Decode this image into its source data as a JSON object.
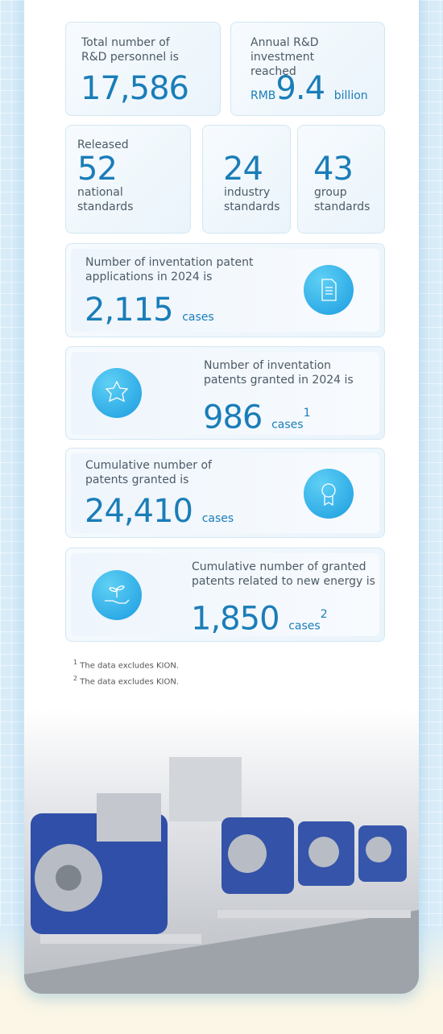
{
  "personnel": {
    "label": "Total number of R&D personnel is",
    "value": "17,586"
  },
  "investment": {
    "label": "Annual R&D investment reached",
    "prefix": "RMB",
    "value": "9.4",
    "unit": "billion"
  },
  "standards": {
    "label": "Released",
    "items": [
      {
        "value": "52",
        "label": "national standards"
      },
      {
        "value": "24",
        "label": "industry standards"
      },
      {
        "value": "43",
        "label": "group standards"
      }
    ]
  },
  "patents": [
    {
      "label": "Number of inventation patent applications in 2024 is",
      "value": "2,115",
      "unit": "cases"
    },
    {
      "label": "Number of inventation patents granted in 2024 is",
      "value": "986",
      "unit": "cases",
      "note": "1"
    },
    {
      "label": "Cumulative number of patents granted is",
      "value": "24,410",
      "unit": "cases"
    },
    {
      "label": "Cumulative number of granted patents related to new energy is",
      "value": "1,850",
      "unit": "cases",
      "note": "2"
    }
  ],
  "footnotes": [
    {
      "mark": "1",
      "text": "The data excludes KION."
    },
    {
      "mark": "2",
      "text": "The data excludes KION."
    }
  ]
}
